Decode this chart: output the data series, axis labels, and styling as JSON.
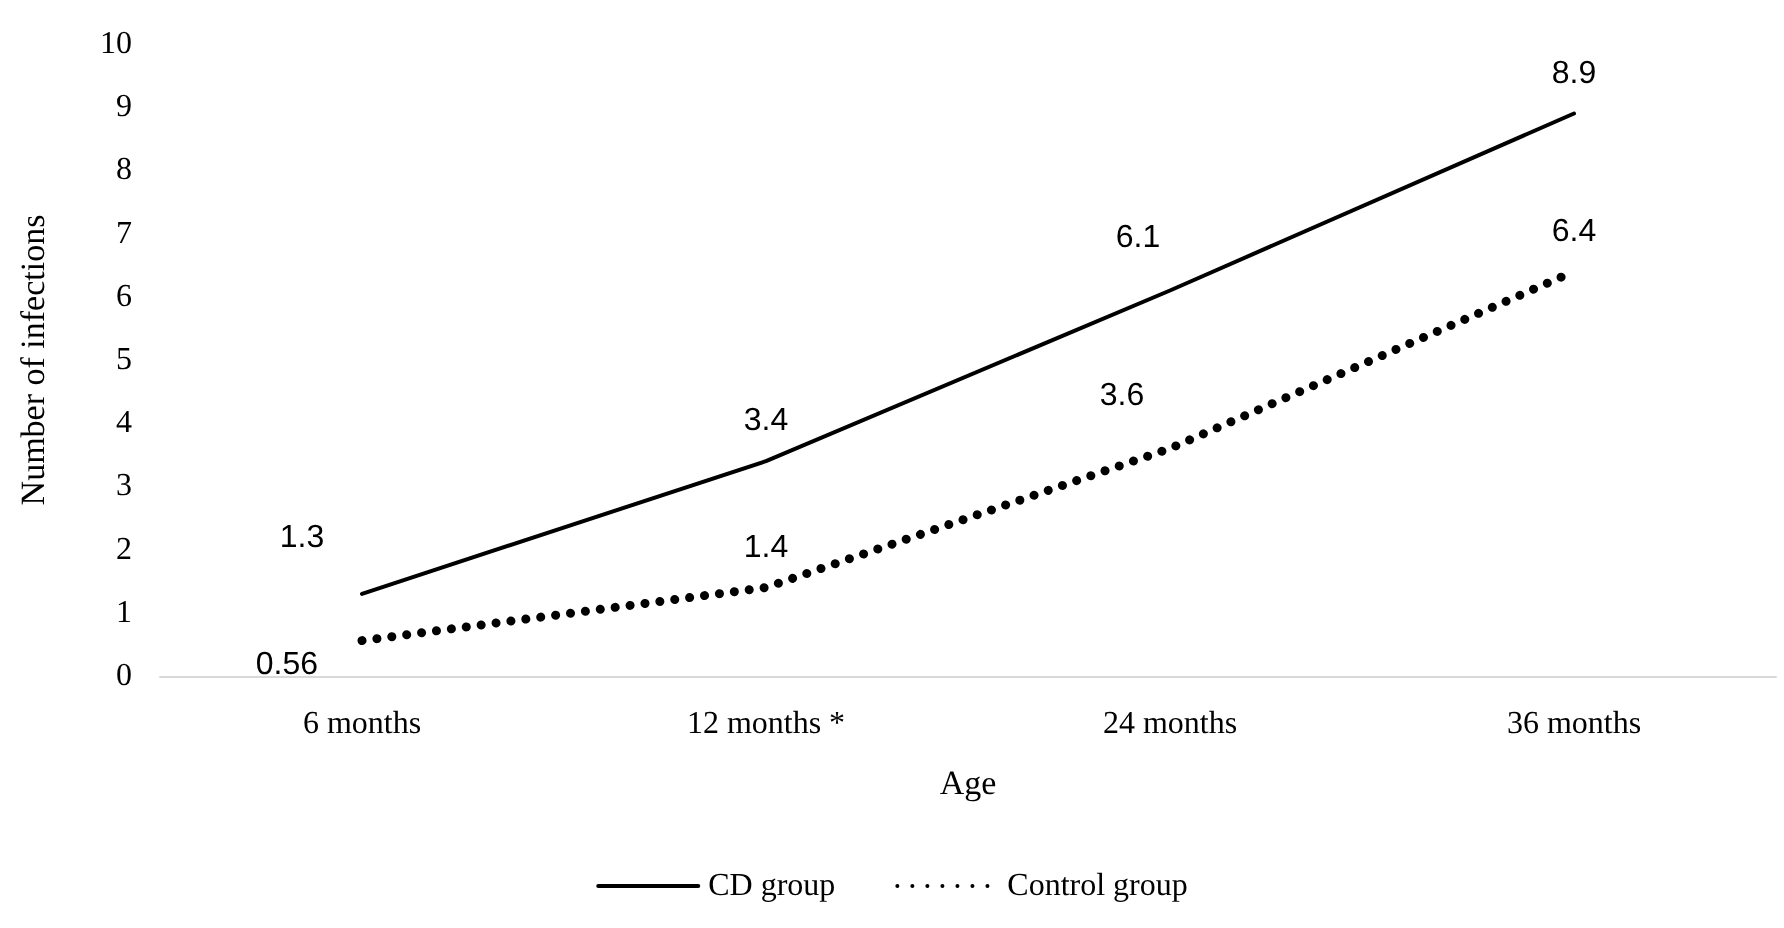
{
  "chart_data": {
    "type": "line",
    "xlabel": "Age",
    "ylabel": "Number of infections",
    "categories": [
      "6 months",
      "12 months *",
      "24 months",
      "36 months"
    ],
    "series": [
      {
        "name": "CD group",
        "color": "#000000",
        "line_style": "solid",
        "values": [
          1.3,
          3.4,
          6.1,
          8.9
        ]
      },
      {
        "name": "Control group",
        "color": "#000000",
        "line_style": "dotted",
        "values": [
          0.56,
          1.4,
          3.6,
          6.4
        ]
      }
    ],
    "ylim": [
      0,
      10
    ],
    "yticks": [
      0,
      1,
      2,
      3,
      4,
      5,
      6,
      7,
      8,
      9,
      10
    ],
    "grid": false,
    "legend": "bottom",
    "marker": "none",
    "data_labels": true
  }
}
